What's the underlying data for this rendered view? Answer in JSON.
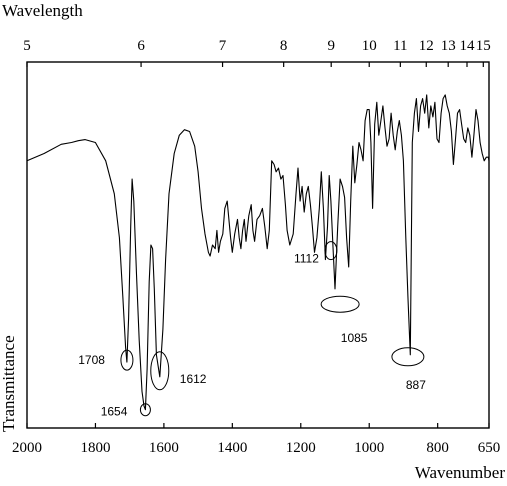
{
  "chart_data": {
    "type": "line",
    "title": "",
    "top_axis_label": "Wavelength",
    "bottom_axis_label": "Wavenumber",
    "ylabel": "Transmittance",
    "xlim": [
      2000,
      650
    ],
    "ylim": [
      0,
      100
    ],
    "grid": false,
    "bottom_ticks": [
      "2000",
      "1800",
      "1600",
      "1400",
      "1200",
      "1000",
      "800",
      "650"
    ],
    "top_ticks": [
      {
        "wavelength": 5,
        "label": "5"
      },
      {
        "wavelength": 6,
        "label": "6"
      },
      {
        "wavelength": 7,
        "label": "7"
      },
      {
        "wavelength": 8,
        "label": "8"
      },
      {
        "wavelength": 9,
        "label": "9"
      },
      {
        "wavelength": 10,
        "label": "10"
      },
      {
        "wavelength": 11,
        "label": "11"
      },
      {
        "wavelength": 12,
        "label": "12"
      },
      {
        "wavelength": 13,
        "label": "13"
      },
      {
        "wavelength": 14,
        "label": "14"
      },
      {
        "wavelength": 15,
        "label": "15"
      }
    ],
    "series": [
      {
        "x": [
          2000,
          1950,
          1900,
          1870,
          1850,
          1830,
          1800,
          1770,
          1745,
          1730,
          1720,
          1712,
          1708,
          1703,
          1697,
          1693,
          1688,
          1680,
          1672,
          1664,
          1658,
          1654,
          1649,
          1643,
          1638,
          1633,
          1628,
          1622,
          1612,
          1603,
          1595,
          1585,
          1570,
          1555,
          1540,
          1525,
          1510,
          1500,
          1490,
          1480,
          1470,
          1465,
          1458,
          1450,
          1445,
          1440,
          1435,
          1428,
          1422,
          1415,
          1410,
          1405,
          1400,
          1393,
          1385,
          1380,
          1375,
          1370,
          1365,
          1360,
          1352,
          1345,
          1340,
          1335,
          1328,
          1320,
          1312,
          1305,
          1298,
          1292,
          1285,
          1278,
          1272,
          1265,
          1258,
          1252,
          1245,
          1240,
          1232,
          1222,
          1214,
          1208,
          1202,
          1196,
          1190,
          1184,
          1178,
          1172,
          1166,
          1160,
          1153,
          1146,
          1140,
          1134,
          1128,
          1122,
          1117,
          1112,
          1106,
          1100,
          1092,
          1085,
          1078,
          1072,
          1066,
          1060,
          1054,
          1048,
          1042,
          1036,
          1030,
          1024,
          1018,
          1012,
          1006,
          1000,
          995,
          990,
          984,
          978,
          972,
          966,
          960,
          954,
          948,
          942,
          936,
          930,
          924,
          918,
          912,
          906,
          900,
          893,
          887,
          880,
          874,
          868,
          862,
          856,
          850,
          844,
          838,
          832,
          826,
          820,
          814,
          808,
          802,
          796,
          790,
          784,
          778,
          772,
          766,
          760,
          754,
          748,
          742,
          736,
          730,
          724,
          718,
          712,
          706,
          700,
          694,
          688,
          682,
          676,
          670,
          664,
          658,
          652,
          650
        ],
        "y": [
          73,
          75,
          77.5,
          78,
          78.5,
          78.8,
          78,
          73,
          64,
          52,
          36,
          22,
          18,
          30,
          55,
          68,
          62,
          42,
          24,
          10,
          6,
          5,
          16,
          40,
          50,
          49,
          38,
          20,
          14,
          27,
          46,
          64,
          75,
          80,
          81.5,
          81,
          77,
          70,
          60,
          53,
          48,
          47,
          50,
          49,
          54,
          48,
          51,
          53,
          60,
          62,
          57,
          52,
          48,
          53,
          57,
          52,
          49,
          54,
          57,
          51,
          58,
          61,
          54,
          51,
          57,
          58,
          60,
          55,
          49,
          54,
          73,
          72,
          70,
          71,
          68,
          69,
          61,
          54,
          50,
          53,
          64,
          71,
          62,
          66,
          59,
          64,
          66,
          61,
          55,
          48,
          52,
          60,
          70,
          60,
          46,
          55,
          69,
          62,
          50,
          38,
          55,
          68,
          66,
          63,
          52,
          44,
          62,
          77,
          67,
          72,
          78,
          76,
          73,
          84,
          87,
          87,
          78,
          60,
          83,
          89,
          80,
          84,
          88,
          82,
          77,
          79,
          86,
          80,
          76,
          81,
          84,
          80,
          73,
          52,
          36,
          20,
          78,
          86,
          90,
          81,
          88,
          90,
          86,
          91,
          82,
          88,
          85,
          89,
          79,
          78,
          86,
          90,
          91,
          88,
          86,
          81,
          72,
          79,
          86,
          87,
          83,
          79,
          78,
          82,
          80,
          74,
          80,
          87,
          84,
          78,
          75,
          73,
          74,
          74,
          73
        ]
      }
    ],
    "annotations": [
      {
        "label": "1708",
        "x": 1708,
        "y": 18
      },
      {
        "label": "1654",
        "x": 1654,
        "y": 5
      },
      {
        "label": "1612",
        "x": 1612,
        "y": 14
      },
      {
        "label": "1112",
        "x": 1112,
        "y": 49
      },
      {
        "label": "1085",
        "x": 1085,
        "y": 36
      },
      {
        "label": "887",
        "x": 887,
        "y": 20
      }
    ]
  }
}
